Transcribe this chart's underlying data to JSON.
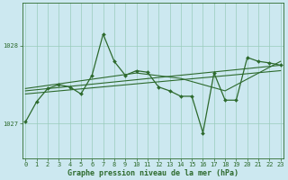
{
  "bg_color": "#cce8f0",
  "grid_color": "#99ccbb",
  "line_color": "#2d6a2d",
  "marker_color": "#2d6a2d",
  "xlim": [
    -0.3,
    23.3
  ],
  "ylim": [
    1026.55,
    1028.55
  ],
  "yticks": [
    1027,
    1028
  ],
  "xticks": [
    0,
    1,
    2,
    3,
    4,
    5,
    6,
    7,
    8,
    9,
    10,
    11,
    12,
    13,
    14,
    15,
    16,
    17,
    18,
    19,
    20,
    21,
    22,
    23
  ],
  "xlabel": "Graphe pression niveau de la mer (hPa)",
  "main_series": [
    [
      0,
      1027.02
    ],
    [
      1,
      1027.28
    ],
    [
      2,
      1027.45
    ],
    [
      3,
      1027.5
    ],
    [
      4,
      1027.47
    ],
    [
      5,
      1027.38
    ],
    [
      6,
      1027.62
    ],
    [
      7,
      1028.15
    ],
    [
      8,
      1027.8
    ],
    [
      9,
      1027.62
    ],
    [
      10,
      1027.68
    ],
    [
      11,
      1027.66
    ],
    [
      12,
      1027.47
    ],
    [
      13,
      1027.42
    ],
    [
      14,
      1027.35
    ],
    [
      15,
      1027.35
    ],
    [
      16,
      1026.88
    ],
    [
      17,
      1027.65
    ],
    [
      18,
      1027.3
    ],
    [
      19,
      1027.3
    ],
    [
      20,
      1027.85
    ],
    [
      21,
      1027.8
    ],
    [
      22,
      1027.78
    ],
    [
      23,
      1027.75
    ]
  ],
  "trend_line1": [
    [
      0,
      1027.38
    ],
    [
      23,
      1027.68
    ]
  ],
  "trend_line2": [
    [
      0,
      1027.42
    ],
    [
      23,
      1027.75
    ]
  ],
  "trend_line3": [
    [
      0,
      1027.45
    ],
    [
      10,
      1027.65
    ],
    [
      14,
      1027.58
    ],
    [
      18,
      1027.42
    ],
    [
      23,
      1027.8
    ]
  ],
  "tick_fontsize": 5,
  "label_fontsize": 6
}
